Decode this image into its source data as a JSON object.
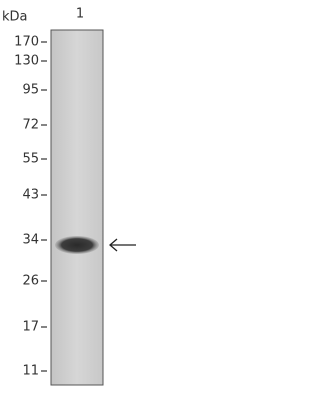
{
  "header": {
    "unit": "kDa",
    "lane": "1"
  },
  "markers": [
    "170",
    "130",
    "95",
    "72",
    "55",
    "43",
    "34",
    "26",
    "17",
    "11"
  ]
}
